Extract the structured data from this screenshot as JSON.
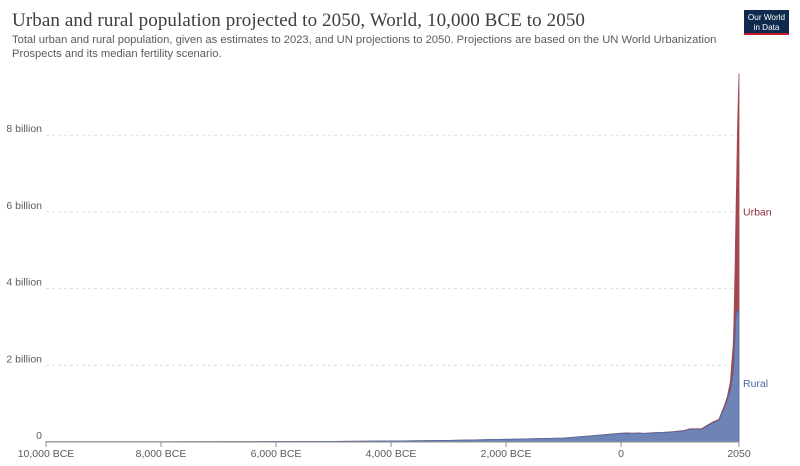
{
  "header": {
    "title": "Urban and rural population projected to 2050, World, 10,000 BCE to 2050",
    "subtitle": "Total urban and rural population, given as estimates to 2023, and UN projections to 2050. Projections are based on the UN World Urbanization Prospects and its median fertility scenario.",
    "logo_line1": "Our World",
    "logo_line2": "in Data"
  },
  "colors": {
    "rural": "#6d84b4",
    "rural_stroke": "#4e6aa6",
    "urban": "#a2484e",
    "urban_label": "#8c2f37",
    "rural_label": "#4a67a3"
  },
  "chart_data": {
    "type": "area",
    "stacked": true,
    "x_unit": "year",
    "ylim": [
      0,
      9700000000
    ],
    "xlim": [
      -10000,
      2050
    ],
    "y_ticks": [
      0,
      2000000000,
      4000000000,
      6000000000,
      8000000000
    ],
    "y_tick_labels": [
      "0",
      "2 billion",
      "4 billion",
      "6 billion",
      "8 billion"
    ],
    "x_ticks": [
      -10000,
      -8000,
      -6000,
      -4000,
      -2000,
      0,
      2050
    ],
    "x_tick_labels": [
      "10,000 BCE",
      "8,000 BCE",
      "6,000 BCE",
      "4,000 BCE",
      "2,000 BCE",
      "0",
      "2050"
    ],
    "grid": true,
    "legend": "inline-right",
    "x": [
      -10000,
      -9000,
      -8000,
      -7000,
      -6000,
      -5000,
      -4000,
      -3000,
      -2000,
      -1000,
      -500,
      0,
      100,
      200,
      300,
      400,
      500,
      600,
      700,
      800,
      900,
      1000,
      1100,
      1200,
      1300,
      1400,
      1500,
      1600,
      1700,
      1800,
      1850,
      1900,
      1950,
      1960,
      1970,
      1980,
      1990,
      2000,
      2010,
      2020,
      2023,
      2030,
      2040,
      2050
    ],
    "series": [
      {
        "name": "Rural",
        "values": [
          4500000,
          5000000,
          6000000,
          8000000,
          11000000,
          16000000,
          26000000,
          42000000,
          70000000,
          100000000,
          160000000,
          225000000,
          230000000,
          225000000,
          230000000,
          220000000,
          230000000,
          240000000,
          240000000,
          250000000,
          260000000,
          275000000,
          290000000,
          330000000,
          330000000,
          330000000,
          420000000,
          500000000,
          560000000,
          900000000,
          1100000000,
          1350000000,
          1800000000,
          2030000000,
          2370000000,
          2680000000,
          3030000000,
          3280000000,
          3390000000,
          3440000000,
          3440000000,
          3430000000,
          3370000000,
          3300000000
        ]
      },
      {
        "name": "Urban",
        "values": [
          0,
          0,
          0,
          0,
          0,
          100000,
          400000,
          800000,
          1500000,
          3000000,
          5000000,
          7000000,
          7000000,
          7000000,
          7000000,
          7000000,
          7000000,
          8000000,
          8000000,
          9000000,
          10000000,
          11000000,
          12000000,
          15000000,
          15000000,
          15000000,
          20000000,
          25000000,
          30000000,
          70000000,
          100000000,
          220000000,
          750000000,
          1000000000,
          1350000000,
          1750000000,
          2300000000,
          2870000000,
          3550000000,
          4380000000,
          4600000000,
          5100000000,
          5700000000,
          6300000000
        ]
      }
    ]
  }
}
